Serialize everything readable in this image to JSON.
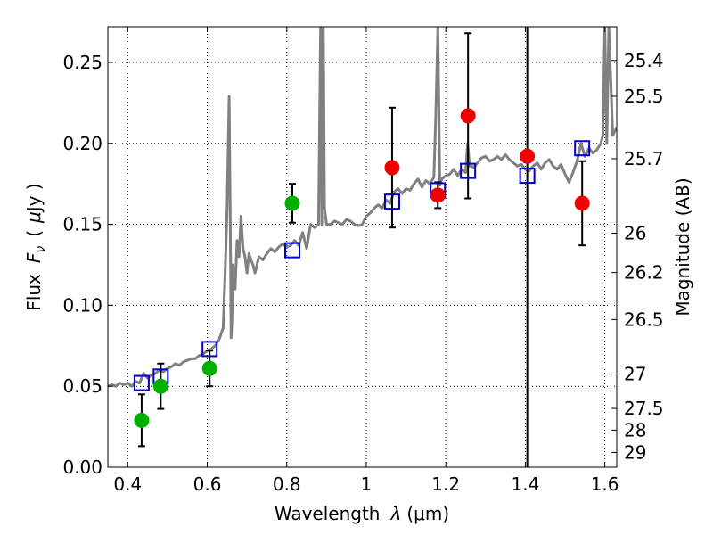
{
  "chart_data": {
    "type": "scatter",
    "xlabel": "Wavelength",
    "xlabel_math": "λ",
    "xlabel_unit": "(μm)",
    "ylabel": "Flux",
    "ylabel_math": "F",
    "ylabel_sub": "ν",
    "ylabel_unit_prefix": "(",
    "ylabel_unit_mu": "μ",
    "ylabel_unit": "Jy )",
    "y2label": "Magnitude (AB)",
    "xlim": [
      0.35,
      1.63
    ],
    "ylim": [
      0.0,
      0.272
    ],
    "grid": true,
    "x_ticks": [
      0.4,
      0.6,
      0.8,
      1.0,
      1.2,
      1.4,
      1.6
    ],
    "x_tick_labels": [
      "0.4",
      "0.6",
      "0.8",
      "1",
      "1.2",
      "1.4",
      "1.6"
    ],
    "y_ticks": [
      0.0,
      0.05,
      0.1,
      0.15,
      0.2,
      0.25
    ],
    "y_tick_labels": [
      "0.00",
      "0.05",
      "0.10",
      "0.15",
      "0.20",
      "0.25"
    ],
    "y2_ticks": [
      {
        "label": "25.4",
        "mag": 25.4
      },
      {
        "label": "25.5",
        "mag": 25.5
      },
      {
        "label": "25.7",
        "mag": 25.7
      },
      {
        "label": "26",
        "mag": 26.0
      },
      {
        "label": "26.2",
        "mag": 26.2
      },
      {
        "label": "26.5",
        "mag": 26.5
      },
      {
        "label": "27",
        "mag": 27.0
      },
      {
        "label": "27.5",
        "mag": 27.5
      },
      {
        "label": "28",
        "mag": 28.0
      },
      {
        "label": "29",
        "mag": 29.0
      }
    ],
    "vertical_line_x": 1.405,
    "series": [
      {
        "type": "line",
        "color": "#808080",
        "x": [
          0.35,
          0.36,
          0.37,
          0.38,
          0.39,
          0.4,
          0.41,
          0.42,
          0.43,
          0.44,
          0.45,
          0.46,
          0.47,
          0.48,
          0.49,
          0.5,
          0.51,
          0.52,
          0.53,
          0.54,
          0.55,
          0.56,
          0.57,
          0.58,
          0.59,
          0.6,
          0.61,
          0.62,
          0.63,
          0.64,
          0.645,
          0.65,
          0.655,
          0.658,
          0.66,
          0.662,
          0.665,
          0.67,
          0.675,
          0.68,
          0.685,
          0.69,
          0.695,
          0.7,
          0.705,
          0.71,
          0.715,
          0.72,
          0.725,
          0.73,
          0.74,
          0.75,
          0.76,
          0.77,
          0.78,
          0.79,
          0.8,
          0.81,
          0.82,
          0.83,
          0.84,
          0.85,
          0.86,
          0.87,
          0.88,
          0.885,
          0.888,
          0.892,
          0.895,
          0.9,
          0.91,
          0.92,
          0.93,
          0.94,
          0.95,
          0.96,
          0.97,
          0.98,
          0.99,
          1.0,
          1.01,
          1.02,
          1.03,
          1.04,
          1.05,
          1.06,
          1.07,
          1.08,
          1.09,
          1.1,
          1.11,
          1.12,
          1.13,
          1.14,
          1.15,
          1.16,
          1.17,
          1.175,
          1.18,
          1.185,
          1.19,
          1.2,
          1.21,
          1.22,
          1.23,
          1.24,
          1.25,
          1.255,
          1.26,
          1.265,
          1.27,
          1.28,
          1.29,
          1.3,
          1.31,
          1.32,
          1.33,
          1.34,
          1.35,
          1.36,
          1.37,
          1.38,
          1.39,
          1.4,
          1.41,
          1.42,
          1.43,
          1.44,
          1.45,
          1.46,
          1.47,
          1.48,
          1.49,
          1.5,
          1.51,
          1.52,
          1.53,
          1.54,
          1.55,
          1.56,
          1.57,
          1.58,
          1.59,
          1.595,
          1.6,
          1.605,
          1.61,
          1.62,
          1.63
        ],
        "y": [
          0.05,
          0.051,
          0.05,
          0.052,
          0.051,
          0.052,
          0.05,
          0.053,
          0.052,
          0.058,
          0.055,
          0.057,
          0.058,
          0.06,
          0.059,
          0.061,
          0.062,
          0.064,
          0.063,
          0.065,
          0.066,
          0.067,
          0.067,
          0.069,
          0.07,
          0.072,
          0.073,
          0.075,
          0.079,
          0.086,
          0.12,
          0.16,
          0.229,
          0.15,
          0.08,
          0.09,
          0.125,
          0.11,
          0.14,
          0.13,
          0.155,
          0.135,
          0.13,
          0.12,
          0.132,
          0.128,
          0.125,
          0.12,
          0.125,
          0.13,
          0.128,
          0.132,
          0.135,
          0.133,
          0.136,
          0.138,
          0.136,
          0.137,
          0.14,
          0.137,
          0.145,
          0.135,
          0.15,
          0.148,
          0.15,
          0.272,
          0.15,
          0.272,
          0.16,
          0.15,
          0.15,
          0.152,
          0.151,
          0.15,
          0.153,
          0.152,
          0.15,
          0.149,
          0.15,
          0.155,
          0.157,
          0.16,
          0.162,
          0.16,
          0.165,
          0.163,
          0.17,
          0.172,
          0.169,
          0.172,
          0.171,
          0.175,
          0.178,
          0.173,
          0.177,
          0.175,
          0.179,
          0.218,
          0.272,
          0.174,
          0.178,
          0.18,
          0.181,
          0.184,
          0.18,
          0.184,
          0.182,
          0.2,
          0.186,
          0.186,
          0.185,
          0.188,
          0.191,
          0.192,
          0.189,
          0.19,
          0.192,
          0.19,
          0.193,
          0.19,
          0.188,
          0.186,
          0.187,
          0.184,
          0.183,
          0.186,
          0.188,
          0.184,
          0.188,
          0.19,
          0.186,
          0.184,
          0.187,
          0.181,
          0.176,
          0.182,
          0.189,
          0.2,
          0.192,
          0.197,
          0.194,
          0.196,
          0.2,
          0.205,
          0.272,
          0.2,
          0.272,
          0.205,
          0.21
        ]
      },
      {
        "type": "scatter",
        "marker": "circle",
        "color": "#00b000",
        "x": [
          0.435,
          0.483,
          0.606,
          0.814
        ],
        "y": [
          0.029,
          0.05,
          0.061,
          0.163
        ],
        "yerr": [
          0.016,
          0.014,
          0.011,
          0.012
        ]
      },
      {
        "type": "scatter",
        "marker": "circle",
        "color": "#ee0000",
        "x": [
          1.065,
          1.18,
          1.256,
          1.405,
          1.543
        ],
        "y": [
          0.185,
          0.168,
          0.217,
          0.192,
          0.163
        ],
        "yerr": [
          0.037,
          0.008,
          0.051,
          0.0,
          0.026
        ]
      },
      {
        "type": "scatter",
        "marker": "open-square",
        "color": "#0000cc",
        "x": [
          0.435,
          0.483,
          0.606,
          0.814,
          1.065,
          1.18,
          1.256,
          1.405,
          1.543
        ],
        "y": [
          0.052,
          0.056,
          0.073,
          0.134,
          0.164,
          0.171,
          0.183,
          0.18,
          0.197
        ]
      }
    ]
  }
}
